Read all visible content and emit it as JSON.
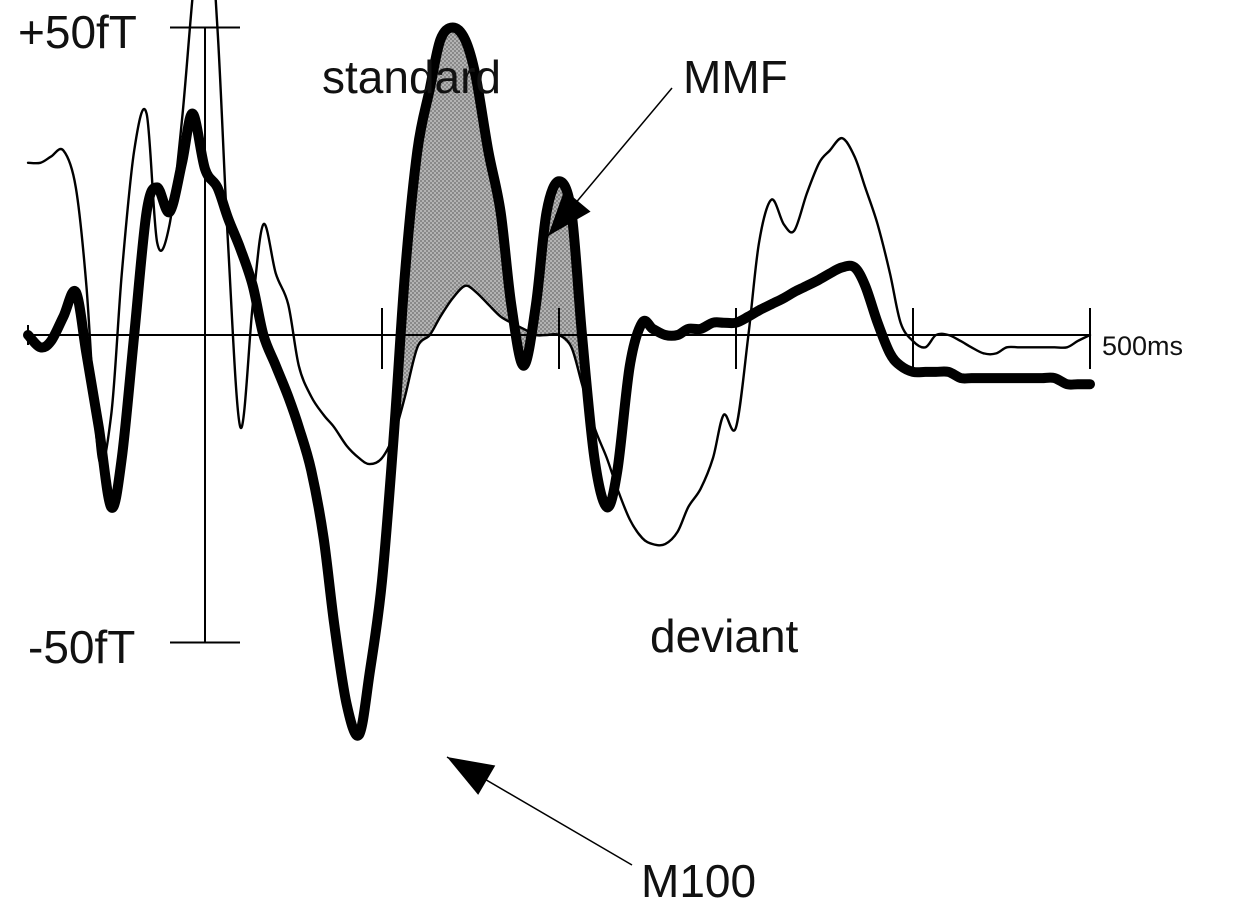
{
  "chart_data": {
    "type": "line",
    "x_unit": "ms",
    "y_unit": "fT",
    "xlim": [
      -100,
      500
    ],
    "ylim": [
      -80,
      60
    ],
    "x_ticks": [
      0,
      100,
      200,
      300,
      400,
      500
    ],
    "x_end_label": "500ms",
    "y_scale_labels": {
      "top": "+50fT",
      "bottom": "-50fT"
    },
    "series": [
      {
        "name": "standard",
        "style": "thin",
        "points": [
          [
            -100,
            28
          ],
          [
            -93,
            28
          ],
          [
            -87,
            29
          ],
          [
            -80,
            30
          ],
          [
            -73,
            24
          ],
          [
            -67,
            8
          ],
          [
            -60,
            -20
          ],
          [
            -53,
            -13
          ],
          [
            -47,
            10
          ],
          [
            -40,
            30
          ],
          [
            -33,
            36
          ],
          [
            -27,
            15
          ],
          [
            -20,
            18
          ],
          [
            -13,
            35
          ],
          [
            -7,
            55
          ],
          [
            0,
            75
          ],
          [
            7,
            50
          ],
          [
            13,
            15
          ],
          [
            20,
            -15
          ],
          [
            27,
            5
          ],
          [
            33,
            18
          ],
          [
            40,
            10
          ],
          [
            47,
            5
          ],
          [
            53,
            -5
          ],
          [
            60,
            -10
          ],
          [
            67,
            -13
          ],
          [
            73,
            -15
          ],
          [
            80,
            -18
          ],
          [
            87,
            -20
          ],
          [
            93,
            -21
          ],
          [
            100,
            -20
          ],
          [
            107,
            -16
          ],
          [
            113,
            -10
          ],
          [
            120,
            -2
          ],
          [
            127,
            0
          ],
          [
            133,
            3
          ],
          [
            140,
            6
          ],
          [
            147,
            8
          ],
          [
            153,
            7
          ],
          [
            160,
            5
          ],
          [
            167,
            3
          ],
          [
            173,
            2
          ],
          [
            180,
            1
          ],
          [
            187,
            0
          ],
          [
            193,
            0
          ],
          [
            200,
            0
          ],
          [
            207,
            -2
          ],
          [
            213,
            -8
          ],
          [
            220,
            -15
          ],
          [
            227,
            -20
          ],
          [
            233,
            -25
          ],
          [
            240,
            -30
          ],
          [
            247,
            -33
          ],
          [
            253,
            -34
          ],
          [
            260,
            -34
          ],
          [
            267,
            -32
          ],
          [
            273,
            -28
          ],
          [
            280,
            -25
          ],
          [
            287,
            -20
          ],
          [
            293,
            -13
          ],
          [
            300,
            -15
          ],
          [
            307,
            0
          ],
          [
            313,
            15
          ],
          [
            320,
            22
          ],
          [
            327,
            18
          ],
          [
            333,
            17
          ],
          [
            340,
            23
          ],
          [
            347,
            28
          ],
          [
            353,
            30
          ],
          [
            360,
            32
          ],
          [
            367,
            29
          ],
          [
            373,
            24
          ],
          [
            380,
            18
          ],
          [
            387,
            10
          ],
          [
            393,
            2
          ],
          [
            400,
            -1
          ],
          [
            407,
            -2
          ],
          [
            413,
            0
          ],
          [
            420,
            0
          ],
          [
            427,
            -1
          ],
          [
            433,
            -2
          ],
          [
            440,
            -3
          ],
          [
            447,
            -3
          ],
          [
            453,
            -2
          ],
          [
            460,
            -2
          ],
          [
            467,
            -2
          ],
          [
            473,
            -2
          ],
          [
            480,
            -2
          ],
          [
            487,
            -2
          ],
          [
            493,
            -1
          ],
          [
            500,
            0
          ]
        ]
      },
      {
        "name": "deviant",
        "style": "thick",
        "points": [
          [
            -100,
            0
          ],
          [
            -93,
            -2
          ],
          [
            -87,
            -1
          ],
          [
            -80,
            3
          ],
          [
            -73,
            7
          ],
          [
            -67,
            -3
          ],
          [
            -60,
            -15
          ],
          [
            -53,
            -28
          ],
          [
            -47,
            -20
          ],
          [
            -40,
            0
          ],
          [
            -33,
            20
          ],
          [
            -27,
            24
          ],
          [
            -20,
            20
          ],
          [
            -13,
            28
          ],
          [
            -7,
            36
          ],
          [
            0,
            27
          ],
          [
            7,
            24
          ],
          [
            13,
            19
          ],
          [
            20,
            14
          ],
          [
            27,
            8
          ],
          [
            33,
            0
          ],
          [
            40,
            -5
          ],
          [
            47,
            -10
          ],
          [
            53,
            -15
          ],
          [
            60,
            -22
          ],
          [
            67,
            -33
          ],
          [
            73,
            -47
          ],
          [
            80,
            -60
          ],
          [
            87,
            -65
          ],
          [
            93,
            -55
          ],
          [
            100,
            -40
          ],
          [
            107,
            -15
          ],
          [
            113,
            10
          ],
          [
            120,
            30
          ],
          [
            127,
            40
          ],
          [
            133,
            48
          ],
          [
            140,
            50
          ],
          [
            147,
            48
          ],
          [
            153,
            42
          ],
          [
            160,
            30
          ],
          [
            167,
            20
          ],
          [
            173,
            5
          ],
          [
            180,
            -5
          ],
          [
            187,
            5
          ],
          [
            193,
            20
          ],
          [
            200,
            25
          ],
          [
            207,
            20
          ],
          [
            213,
            0
          ],
          [
            220,
            -20
          ],
          [
            227,
            -28
          ],
          [
            233,
            -22
          ],
          [
            240,
            -5
          ],
          [
            247,
            2
          ],
          [
            253,
            1
          ],
          [
            260,
            0
          ],
          [
            267,
            0
          ],
          [
            273,
            1
          ],
          [
            280,
            1
          ],
          [
            287,
            2
          ],
          [
            293,
            2
          ],
          [
            300,
            2
          ],
          [
            307,
            3
          ],
          [
            313,
            4
          ],
          [
            320,
            5
          ],
          [
            327,
            6
          ],
          [
            333,
            7
          ],
          [
            340,
            8
          ],
          [
            347,
            9
          ],
          [
            353,
            10
          ],
          [
            360,
            11
          ],
          [
            367,
            11
          ],
          [
            373,
            8
          ],
          [
            380,
            2
          ],
          [
            387,
            -3
          ],
          [
            393,
            -5
          ],
          [
            400,
            -6
          ],
          [
            407,
            -6
          ],
          [
            413,
            -6
          ],
          [
            420,
            -6
          ],
          [
            427,
            -7
          ],
          [
            433,
            -7
          ],
          [
            440,
            -7
          ],
          [
            447,
            -7
          ],
          [
            453,
            -7
          ],
          [
            460,
            -7
          ],
          [
            467,
            -7
          ],
          [
            473,
            -7
          ],
          [
            480,
            -7
          ],
          [
            487,
            -8
          ],
          [
            493,
            -8
          ],
          [
            500,
            -8
          ]
        ]
      }
    ],
    "annotations": [
      {
        "text": "standard",
        "points_to_series": "standard"
      },
      {
        "text": "deviant",
        "points_to_series": "deviant"
      },
      {
        "text": "MMF",
        "arrow_to": [
          133,
          30
        ],
        "note_region": "shaded difference between curves"
      },
      {
        "text": "M100",
        "arrow_to": [
          87,
          -65
        ]
      }
    ],
    "shaded_region": {
      "between": [
        "standard",
        "deviant"
      ],
      "x_range": [
        107,
        220
      ],
      "fill": "#9a9a9a"
    },
    "colors": {
      "line": "#000000",
      "shade": "#9a9a9a"
    },
    "grid": false,
    "legend": "none"
  },
  "labels": {
    "y_top": "+50fT",
    "y_bottom": "-50fT",
    "x_end": "500ms",
    "standard": "standard",
    "deviant": "deviant",
    "mmf": "MMF",
    "m100": "M100"
  }
}
